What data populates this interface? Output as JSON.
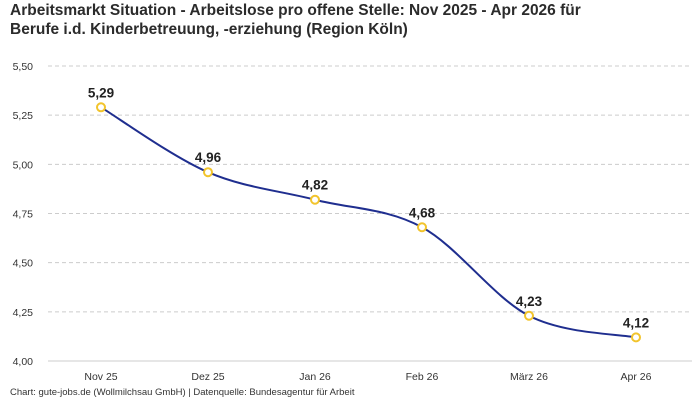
{
  "chart_data": {
    "type": "line",
    "title_lines": [
      "Arbeitsmarkt Situation - Arbeitslose pro offene Stelle: Nov 2025 - Apr 2026 für",
      "Berufe i.d. Kinderbetreuung, -erziehung (Region Köln)"
    ],
    "categories": [
      "Nov 25",
      "Dez 25",
      "Jan 26",
      "Feb 26",
      "März 26",
      "Apr 26"
    ],
    "values": [
      5.29,
      4.96,
      4.82,
      4.68,
      4.23,
      4.12
    ],
    "value_labels": [
      "5,29",
      "4,96",
      "4,82",
      "4,68",
      "4,23",
      "4,12"
    ],
    "yticks": [
      4.0,
      4.25,
      4.5,
      4.75,
      5.0,
      5.25,
      5.5
    ],
    "ytick_labels": [
      "4,00",
      "4,25",
      "4,50",
      "4,75",
      "5,00",
      "5,25",
      "5,50"
    ],
    "ylim": [
      4.0,
      5.5
    ],
    "grid": true,
    "line_color": "#1f2e8f",
    "marker_color": "#f2c42c",
    "grid_color": "#cccccc"
  },
  "footer": "Chart: gute-jobs.de (Wollmilchsau GmbH) | Datenquelle: Bundesagentur für Arbeit"
}
